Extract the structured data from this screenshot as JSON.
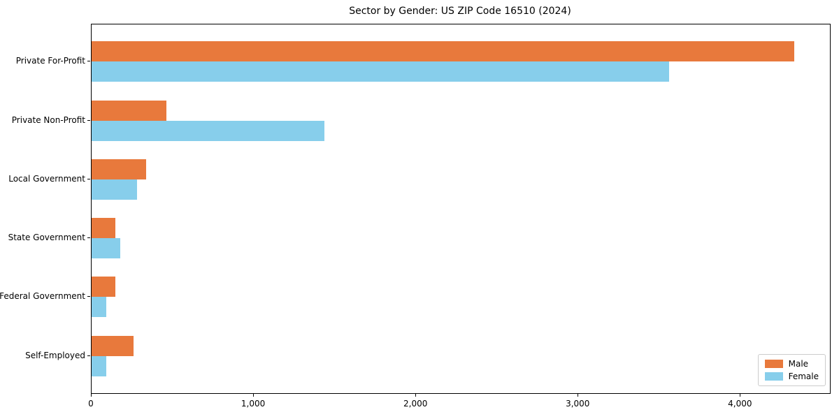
{
  "title": "Sector by Gender: US ZIP Code 16510 (2024)",
  "colors": {
    "male": "#e8793c",
    "female": "#87ceeb",
    "axis": "#000000",
    "legend_border": "#cccccc",
    "background": "#ffffff"
  },
  "legend": {
    "position": "lower right",
    "items": [
      {
        "label": "Male",
        "color": "#e8793c"
      },
      {
        "label": "Female",
        "color": "#87ceeb"
      }
    ]
  },
  "chart_data": {
    "type": "bar",
    "orientation": "horizontal",
    "title": "Sector by Gender: US ZIP Code 16510 (2024)",
    "categories": [
      "Private For-Profit",
      "Private Non-Profit",
      "Local Government",
      "State Government",
      "Federal Government",
      "Self-Employed"
    ],
    "series": [
      {
        "name": "Male",
        "color": "#e8793c",
        "values": [
          4330,
          460,
          335,
          148,
          148,
          258
        ]
      },
      {
        "name": "Female",
        "color": "#87ceeb",
        "values": [
          3560,
          1435,
          280,
          175,
          90,
          90
        ]
      }
    ],
    "xlabel": "",
    "ylabel": "",
    "xlim": [
      0,
      4550
    ],
    "xticks": [
      {
        "value": 0,
        "label": "0"
      },
      {
        "value": 1000,
        "label": "1,000"
      },
      {
        "value": 2000,
        "label": "2,000"
      },
      {
        "value": 3000,
        "label": "3,000"
      },
      {
        "value": 4000,
        "label": "4,000"
      }
    ],
    "grid": false,
    "legend_position": "lower right"
  }
}
